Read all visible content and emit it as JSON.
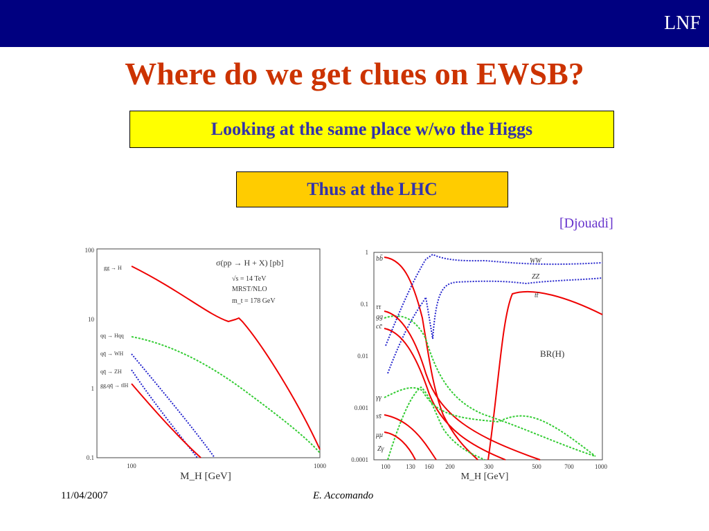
{
  "header": {
    "tag": "LNF"
  },
  "title": "Where do we get clues on EWSB?",
  "box1": "Looking at the same place w/wo the Higgs",
  "box2": "Thus at the LHC",
  "credit": "[Djouadi]",
  "left_plot": {
    "legend": [
      "σ(pp → H + X) [pb]",
      "√s = 14 TeV",
      "MRST/NLO",
      "m_t = 178 GeV"
    ],
    "curves": [
      "gg → H",
      "qq → Hqq",
      "qq̄ → WH",
      "qq̄ → ZH",
      "gg,qq̄ → tt̄H"
    ],
    "yticks": [
      "100",
      "10",
      "1",
      "0.1"
    ],
    "xticks": [
      "100",
      "1000"
    ],
    "xlabel": "M_H [GeV]"
  },
  "right_plot": {
    "curves": [
      "bb̄",
      "ττ",
      "gg",
      "cc̄",
      "γγ",
      "ss̄",
      "μμ",
      "Zγ",
      "WW",
      "ZZ",
      "tt̄"
    ],
    "label": "BR(H)",
    "yticks": [
      "1",
      "0.1",
      "0.01",
      "0.001",
      "0.0001"
    ],
    "xticks": [
      "100",
      "130",
      "160",
      "200",
      "300",
      "500",
      "700",
      "1000"
    ],
    "xlabel": "M_H [GeV]"
  },
  "footer": {
    "date": "11/04/2007",
    "author": "E. Accomando"
  }
}
